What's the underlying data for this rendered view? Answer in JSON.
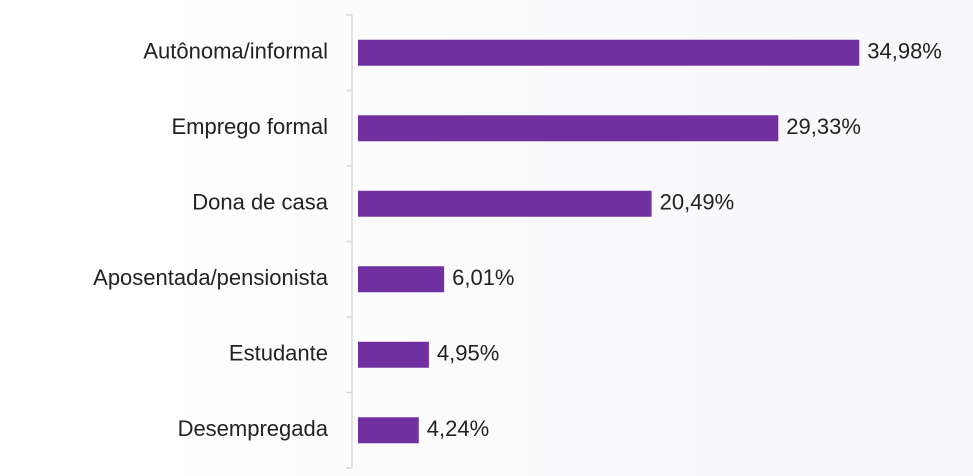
{
  "chart_data": {
    "type": "bar",
    "orientation": "horizontal",
    "categories": [
      "Autônoma/informal",
      "Emprego formal",
      "Dona de casa",
      "Aposentada/pensionista",
      "Estudante",
      "Desempregada"
    ],
    "values": [
      34.98,
      29.33,
      20.49,
      6.01,
      4.95,
      4.24
    ],
    "value_labels": [
      "34,98%",
      "29,33%",
      "20,49%",
      "6,01%",
      "4,95%",
      "4,24%"
    ],
    "color": "#7030a0"
  }
}
